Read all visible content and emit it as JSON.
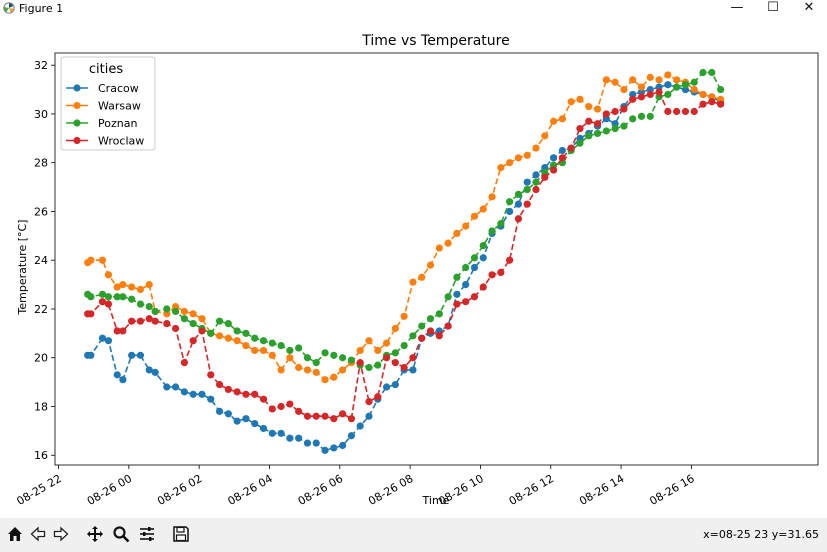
{
  "window": {
    "title": "Figure 1",
    "minimize": "—",
    "maximize": "☐",
    "close": "✕"
  },
  "toolbar": {
    "buttons": [
      "home-icon",
      "back-icon",
      "forward-icon",
      "pan-icon",
      "zoom-icon",
      "configure-icon",
      "save-icon"
    ],
    "coords": "x=08-25 23 y=31.65"
  },
  "chart_data": {
    "type": "line",
    "title": "Time vs Temperature",
    "xlabel": "Time",
    "ylabel": "Temperature [°C]",
    "x_tick_labels": [
      "08-25 22",
      "08-26 00",
      "08-26 02",
      "08-26 04",
      "08-26 06",
      "08-26 08",
      "08-26 10",
      "08-26 12",
      "08-26 14",
      "08-26 16"
    ],
    "y_ticks": [
      16,
      18,
      20,
      22,
      24,
      26,
      28,
      30,
      32
    ],
    "ylim": [
      15.6,
      32.5
    ],
    "x_range_hours": [
      -2.1,
      19.6
    ],
    "legend": {
      "title": "cities",
      "placement": "top-left"
    },
    "grid": false,
    "x_hours": [
      -1.17,
      -1.08,
      -0.75,
      -0.58,
      -0.33,
      -0.17,
      0.08,
      0.33,
      0.58,
      0.75,
      1.08,
      1.33,
      1.58,
      1.83,
      2.08,
      2.33,
      2.58,
      2.83,
      3.08,
      3.33,
      3.58,
      3.83,
      4.08,
      4.33,
      4.58,
      4.83,
      5.08,
      5.33,
      5.58,
      5.83,
      6.08,
      6.33,
      6.58,
      6.83,
      7.08,
      7.33,
      7.58,
      7.83,
      8.08,
      8.33,
      8.58,
      8.83,
      9.08,
      9.33,
      9.58,
      9.83,
      10.08,
      10.33,
      10.58,
      10.83,
      11.08,
      11.33,
      11.58,
      11.83,
      12.08,
      12.33,
      12.58,
      12.83,
      13.08,
      13.33,
      13.58,
      13.83,
      14.08,
      14.33,
      14.58,
      14.83,
      15.08,
      15.33,
      15.58,
      15.83,
      16.08,
      16.33,
      16.58,
      16.83
    ],
    "series": [
      {
        "name": "Cracow",
        "color": "#1f77b4",
        "values": [
          20.1,
          20.1,
          20.8,
          20.7,
          19.3,
          19.1,
          20.1,
          20.1,
          19.5,
          19.4,
          18.8,
          18.8,
          18.6,
          18.5,
          18.5,
          18.3,
          17.8,
          17.7,
          17.4,
          17.5,
          17.3,
          17.1,
          16.9,
          16.9,
          16.7,
          16.7,
          16.5,
          16.5,
          16.2,
          16.3,
          16.4,
          16.8,
          17.2,
          17.6,
          18.3,
          18.8,
          18.9,
          19.5,
          19.5,
          20.8,
          21.0,
          21.1,
          21.3,
          22.6,
          23.0,
          23.7,
          24.1,
          25.1,
          25.4,
          26.0,
          26.3,
          27.2,
          27.5,
          27.8,
          28.2,
          28.5,
          28.6,
          29.0,
          29.2,
          29.5,
          29.8,
          29.6,
          30.3,
          30.8,
          30.9,
          31.0,
          31.1,
          31.2,
          31.1,
          31.0,
          30.9,
          30.8,
          30.7,
          30.5
        ]
      },
      {
        "name": "Warsaw",
        "color": "#ff7f0e",
        "values": [
          23.9,
          24.0,
          24.0,
          23.4,
          22.9,
          23.0,
          22.9,
          22.8,
          23.0,
          21.9,
          21.8,
          22.1,
          21.9,
          21.8,
          21.6,
          21.0,
          20.9,
          20.8,
          20.7,
          20.5,
          20.3,
          20.3,
          20.1,
          19.5,
          20.0,
          19.6,
          19.5,
          19.4,
          19.1,
          19.2,
          19.5,
          19.8,
          20.3,
          20.7,
          20.3,
          20.6,
          21.2,
          21.7,
          23.1,
          23.3,
          23.8,
          24.5,
          24.7,
          25.1,
          25.4,
          25.8,
          26.1,
          26.6,
          27.8,
          28.0,
          28.2,
          28.3,
          28.6,
          29.1,
          29.7,
          29.8,
          30.5,
          30.6,
          30.3,
          30.2,
          31.4,
          31.3,
          31.0,
          31.4,
          31.1,
          31.5,
          31.4,
          31.6,
          31.4,
          31.3,
          31.0,
          30.8,
          30.7,
          30.6
        ]
      },
      {
        "name": "Poznan",
        "color": "#2ca02c",
        "values": [
          22.6,
          22.5,
          22.6,
          22.5,
          22.5,
          22.5,
          22.4,
          22.2,
          22.1,
          21.9,
          22.0,
          21.9,
          21.6,
          21.4,
          21.2,
          21.0,
          21.5,
          21.4,
          21.1,
          21.0,
          20.8,
          20.7,
          20.6,
          20.5,
          20.3,
          20.4,
          20.0,
          19.8,
          20.2,
          20.1,
          20.0,
          19.9,
          19.7,
          19.6,
          19.7,
          20.1,
          20.2,
          20.5,
          20.9,
          21.3,
          21.6,
          21.8,
          22.5,
          23.3,
          23.7,
          24.1,
          24.6,
          25.2,
          25.5,
          26.4,
          26.7,
          26.9,
          27.2,
          27.6,
          27.9,
          28.0,
          28.5,
          28.8,
          29.1,
          29.2,
          29.3,
          29.4,
          29.5,
          29.8,
          29.9,
          29.9,
          30.7,
          30.8,
          31.1,
          31.2,
          31.3,
          31.7,
          31.7,
          31.0
        ]
      },
      {
        "name": "Wroclaw",
        "color": "#d62728",
        "values": [
          21.8,
          21.8,
          22.3,
          22.2,
          21.1,
          21.1,
          21.5,
          21.5,
          21.6,
          21.5,
          21.4,
          21.2,
          19.8,
          20.7,
          21.1,
          19.3,
          18.9,
          18.7,
          18.6,
          18.5,
          18.5,
          18.3,
          17.9,
          18.0,
          18.1,
          17.8,
          17.6,
          17.6,
          17.6,
          17.5,
          17.7,
          17.5,
          19.8,
          18.2,
          18.4,
          20.0,
          19.8,
          19.6,
          20.0,
          20.8,
          21.1,
          20.9,
          21.3,
          22.2,
          22.3,
          22.5,
          22.9,
          23.4,
          23.5,
          24.0,
          25.7,
          26.3,
          26.9,
          27.4,
          27.7,
          28.2,
          28.6,
          29.4,
          29.7,
          29.6,
          30.0,
          30.1,
          30.2,
          30.6,
          30.7,
          30.8,
          30.9,
          30.1,
          30.1,
          30.1,
          30.1,
          30.4,
          30.5,
          30.4
        ]
      }
    ]
  }
}
